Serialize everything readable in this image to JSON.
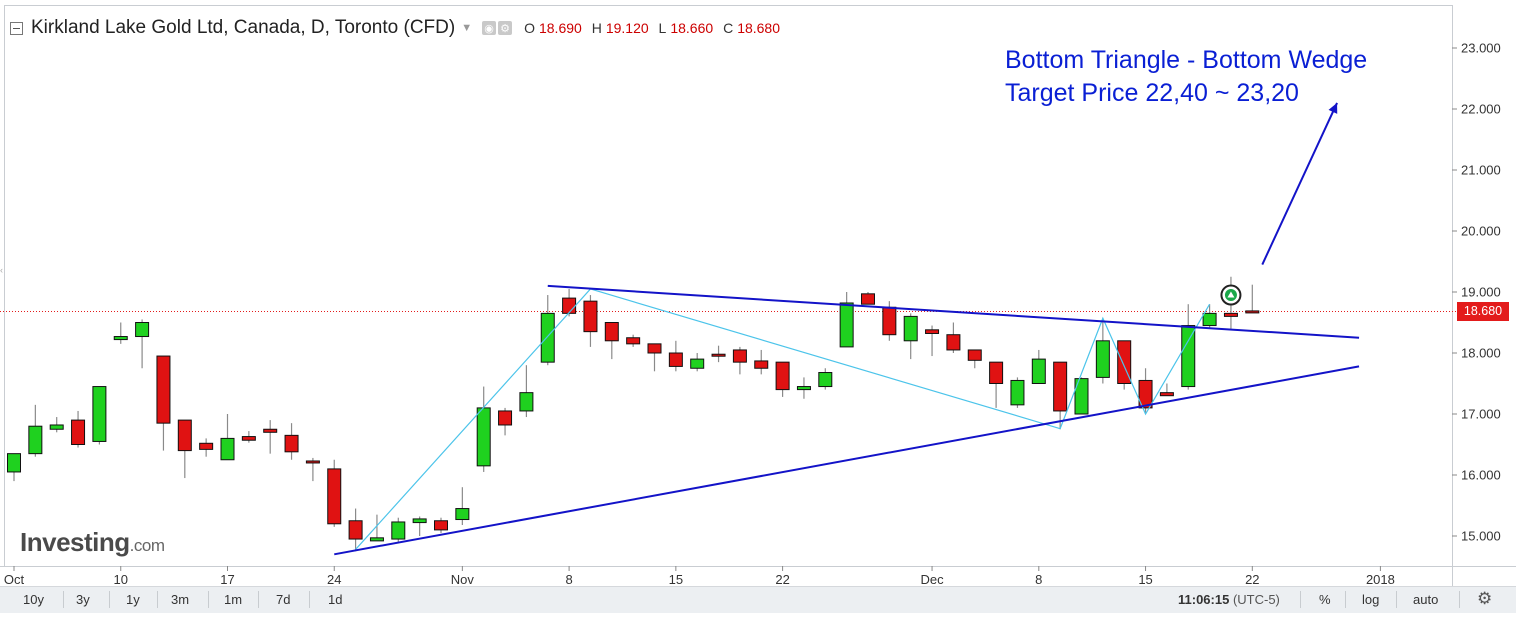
{
  "header": {
    "symbol": "Kirkland Lake Gold Ltd, Canada, D, Toronto (CFD)",
    "ohlc": {
      "o_label": "O",
      "o": "18.690",
      "h_label": "H",
      "h": "19.120",
      "l_label": "L",
      "l": "18.660",
      "c_label": "C",
      "c": "18.680"
    }
  },
  "annotation": {
    "line1": "Bottom Triangle - Bottom Wedge",
    "line2": "Target Price 22,40 ~ 23,20"
  },
  "watermark": {
    "brand": "Investing",
    "suffix": ".com"
  },
  "last_price_label": "18.680",
  "bottom_bar": {
    "ranges": [
      "10y",
      "3y",
      "1y",
      "3m",
      "1m",
      "7d",
      "1d"
    ],
    "time": "11:06:15",
    "timezone": "(UTC-5)",
    "options": [
      "%",
      "log",
      "auto"
    ]
  },
  "colors": {
    "up": "#1fd11f",
    "down": "#e01212",
    "trendline": "#1313c8",
    "zigzag": "#4cc4ea",
    "annotation": "#0a1fd4",
    "last_price": "#e31b1b"
  },
  "chart_data": {
    "type": "candlestick",
    "ylim": [
      14.5,
      23.5
    ],
    "y_ticks": [
      15,
      16,
      17,
      18,
      19,
      20,
      21,
      22,
      23
    ],
    "y_tick_labels": [
      "15.000",
      "16.000",
      "17.000",
      "18.000",
      "19.000",
      "20.000",
      "21.000",
      "22.000",
      "23.000"
    ],
    "x_tick_labels": [
      {
        "label": "Oct",
        "date": "2017-10-02"
      },
      {
        "label": "10",
        "date": "2017-10-10"
      },
      {
        "label": "17",
        "date": "2017-10-17"
      },
      {
        "label": "24",
        "date": "2017-10-24"
      },
      {
        "label": "Nov",
        "date": "2017-11-01"
      },
      {
        "label": "8",
        "date": "2017-11-08"
      },
      {
        "label": "15",
        "date": "2017-11-15"
      },
      {
        "label": "22",
        "date": "2017-11-22"
      },
      {
        "label": "Dec",
        "date": "2017-12-01"
      },
      {
        "label": "8",
        "date": "2017-12-08"
      },
      {
        "label": "15",
        "date": "2017-12-15"
      },
      {
        "label": "22",
        "date": "2017-12-22"
      },
      {
        "label": "2018",
        "date": "2018-01-01"
      }
    ],
    "candles": [
      {
        "date": "2017-10-02",
        "o": 16.05,
        "h": 16.35,
        "l": 15.9,
        "c": 16.35
      },
      {
        "date": "2017-10-03",
        "o": 16.35,
        "h": 17.15,
        "l": 16.3,
        "c": 16.8
      },
      {
        "date": "2017-10-04",
        "o": 16.75,
        "h": 16.95,
        "l": 16.7,
        "c": 16.82
      },
      {
        "date": "2017-10-05",
        "o": 16.9,
        "h": 17.05,
        "l": 16.45,
        "c": 16.5
      },
      {
        "date": "2017-10-06",
        "o": 16.55,
        "h": 17.45,
        "l": 16.5,
        "c": 17.45
      },
      {
        "date": "2017-10-10",
        "o": 18.22,
        "h": 18.5,
        "l": 18.15,
        "c": 18.27
      },
      {
        "date": "2017-10-11",
        "o": 18.27,
        "h": 18.55,
        "l": 17.75,
        "c": 18.5
      },
      {
        "date": "2017-10-12",
        "o": 17.95,
        "h": 17.95,
        "l": 16.4,
        "c": 16.85
      },
      {
        "date": "2017-10-13",
        "o": 16.9,
        "h": 16.9,
        "l": 15.95,
        "c": 16.4
      },
      {
        "date": "2017-10-16",
        "o": 16.52,
        "h": 16.6,
        "l": 16.3,
        "c": 16.42
      },
      {
        "date": "2017-10-17",
        "o": 16.25,
        "h": 17.0,
        "l": 16.25,
        "c": 16.6
      },
      {
        "date": "2017-10-18",
        "o": 16.63,
        "h": 16.72,
        "l": 16.53,
        "c": 16.57
      },
      {
        "date": "2017-10-19",
        "o": 16.75,
        "h": 16.9,
        "l": 16.35,
        "c": 16.7
      },
      {
        "date": "2017-10-20",
        "o": 16.65,
        "h": 16.85,
        "l": 16.25,
        "c": 16.38
      },
      {
        "date": "2017-10-23",
        "o": 16.23,
        "h": 16.28,
        "l": 15.9,
        "c": 16.2
      },
      {
        "date": "2017-10-24",
        "o": 16.1,
        "h": 16.25,
        "l": 15.15,
        "c": 15.2
      },
      {
        "date": "2017-10-25",
        "o": 15.25,
        "h": 15.45,
        "l": 14.75,
        "c": 14.95
      },
      {
        "date": "2017-10-26",
        "o": 14.92,
        "h": 15.35,
        "l": 14.92,
        "c": 14.97
      },
      {
        "date": "2017-10-27",
        "o": 14.95,
        "h": 15.3,
        "l": 14.9,
        "c": 15.23
      },
      {
        "date": "2017-10-30",
        "o": 15.22,
        "h": 15.32,
        "l": 15.0,
        "c": 15.28
      },
      {
        "date": "2017-10-31",
        "o": 15.25,
        "h": 15.3,
        "l": 15.05,
        "c": 15.1
      },
      {
        "date": "2017-11-01",
        "o": 15.27,
        "h": 15.8,
        "l": 15.18,
        "c": 15.45
      },
      {
        "date": "2017-11-02",
        "o": 16.15,
        "h": 17.45,
        "l": 16.05,
        "c": 17.1
      },
      {
        "date": "2017-11-03",
        "o": 17.05,
        "h": 17.1,
        "l": 16.65,
        "c": 16.82
      },
      {
        "date": "2017-11-06",
        "o": 17.05,
        "h": 17.8,
        "l": 16.95,
        "c": 17.35
      },
      {
        "date": "2017-11-07",
        "o": 17.85,
        "h": 18.95,
        "l": 17.8,
        "c": 18.65
      },
      {
        "date": "2017-11-08",
        "o": 18.9,
        "h": 19.05,
        "l": 18.6,
        "c": 18.65
      },
      {
        "date": "2017-11-09",
        "o": 18.85,
        "h": 18.95,
        "l": 18.1,
        "c": 18.35
      },
      {
        "date": "2017-11-10",
        "o": 18.5,
        "h": 18.5,
        "l": 17.9,
        "c": 18.2
      },
      {
        "date": "2017-11-13",
        "o": 18.25,
        "h": 18.3,
        "l": 18.1,
        "c": 18.15
      },
      {
        "date": "2017-11-14",
        "o": 18.15,
        "h": 18.15,
        "l": 17.7,
        "c": 18.0
      },
      {
        "date": "2017-11-15",
        "o": 18.0,
        "h": 18.2,
        "l": 17.7,
        "c": 17.78
      },
      {
        "date": "2017-11-16",
        "o": 17.75,
        "h": 18.0,
        "l": 17.7,
        "c": 17.9
      },
      {
        "date": "2017-11-17",
        "o": 17.98,
        "h": 18.12,
        "l": 17.85,
        "c": 17.97
      },
      {
        "date": "2017-11-20",
        "o": 18.05,
        "h": 18.1,
        "l": 17.65,
        "c": 17.85
      },
      {
        "date": "2017-11-21",
        "o": 17.87,
        "h": 18.05,
        "l": 17.65,
        "c": 17.75
      },
      {
        "date": "2017-11-22",
        "o": 17.85,
        "h": 17.85,
        "l": 17.28,
        "c": 17.4
      },
      {
        "date": "2017-11-23",
        "o": 17.4,
        "h": 17.6,
        "l": 17.25,
        "c": 17.45
      },
      {
        "date": "2017-11-24",
        "o": 17.45,
        "h": 17.75,
        "l": 17.4,
        "c": 17.68
      },
      {
        "date": "2017-11-27",
        "o": 18.1,
        "h": 19.0,
        "l": 18.1,
        "c": 18.82
      },
      {
        "date": "2017-11-28",
        "o": 18.97,
        "h": 19.0,
        "l": 18.85,
        "c": 18.8
      },
      {
        "date": "2017-11-29",
        "o": 18.75,
        "h": 18.85,
        "l": 18.2,
        "c": 18.3
      },
      {
        "date": "2017-11-30",
        "o": 18.2,
        "h": 18.65,
        "l": 17.9,
        "c": 18.6
      },
      {
        "date": "2017-12-01",
        "o": 18.38,
        "h": 18.45,
        "l": 17.95,
        "c": 18.32
      },
      {
        "date": "2017-12-04",
        "o": 18.3,
        "h": 18.5,
        "l": 18.0,
        "c": 18.05
      },
      {
        "date": "2017-12-05",
        "o": 18.05,
        "h": 18.05,
        "l": 17.75,
        "c": 17.88
      },
      {
        "date": "2017-12-06",
        "o": 17.85,
        "h": 17.85,
        "l": 17.1,
        "c": 17.5
      },
      {
        "date": "2017-12-07",
        "o": 17.15,
        "h": 17.6,
        "l": 17.1,
        "c": 17.55
      },
      {
        "date": "2017-12-08",
        "o": 17.5,
        "h": 18.05,
        "l": 17.5,
        "c": 17.9
      },
      {
        "date": "2017-12-11",
        "o": 17.85,
        "h": 17.85,
        "l": 16.75,
        "c": 17.05
      },
      {
        "date": "2017-12-12",
        "o": 17.0,
        "h": 17.6,
        "l": 17.0,
        "c": 17.58
      },
      {
        "date": "2017-12-13",
        "o": 17.6,
        "h": 18.55,
        "l": 17.5,
        "c": 18.2
      },
      {
        "date": "2017-12-14",
        "o": 18.2,
        "h": 18.2,
        "l": 17.4,
        "c": 17.5
      },
      {
        "date": "2017-12-15",
        "o": 17.55,
        "h": 17.75,
        "l": 17.0,
        "c": 17.1
      },
      {
        "date": "2017-12-18",
        "o": 17.35,
        "h": 17.5,
        "l": 17.3,
        "c": 17.3
      },
      {
        "date": "2017-12-19",
        "o": 17.45,
        "h": 18.8,
        "l": 17.4,
        "c": 18.45
      },
      {
        "date": "2017-12-20",
        "o": 18.45,
        "h": 18.8,
        "l": 18.4,
        "c": 18.65
      },
      {
        "date": "2017-12-21",
        "o": 18.65,
        "h": 19.25,
        "l": 18.4,
        "c": 18.6
      },
      {
        "date": "2017-12-22",
        "o": 18.69,
        "h": 19.12,
        "l": 18.66,
        "c": 18.68
      }
    ],
    "last_price": 18.68,
    "drawings": {
      "upper_trendline": {
        "start": {
          "date": "2017-11-07",
          "price": 19.1
        },
        "end": {
          "date": "2017-12-29",
          "price": 18.25
        }
      },
      "lower_trendline": {
        "start": {
          "date": "2017-10-24",
          "price": 14.7
        },
        "end": {
          "date": "2017-12-29",
          "price": 17.78
        }
      },
      "zigzag": [
        {
          "date": "2017-10-25",
          "price": 14.78
        },
        {
          "date": "2017-11-09",
          "price": 19.05
        },
        {
          "date": "2017-12-11",
          "price": 16.76
        },
        {
          "date": "2017-12-13",
          "price": 18.57
        },
        {
          "date": "2017-12-15",
          "price": 17.0
        },
        {
          "date": "2017-12-20",
          "price": 18.8
        }
      ],
      "target_arrow": {
        "start": {
          "date": "2017-12-22",
          "price": 19.45
        },
        "end": {
          "date": "2017-12-29",
          "price": 22.1
        }
      },
      "signal_marker": {
        "date": "2017-12-21",
        "price": 18.95
      }
    }
  }
}
